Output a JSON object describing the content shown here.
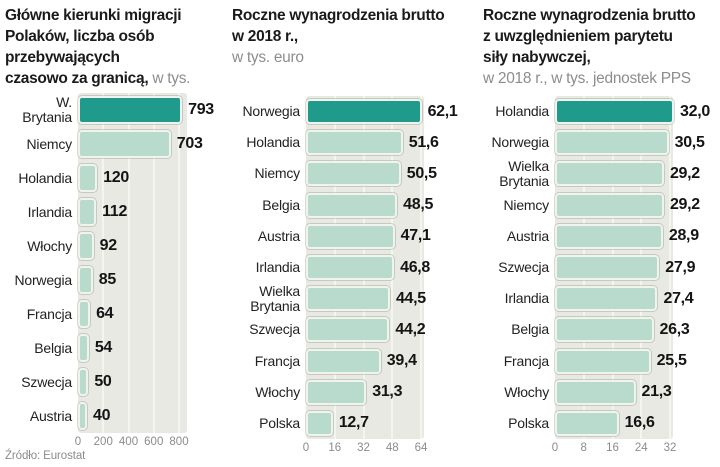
{
  "page": {
    "source": "Źródło: Eurostat"
  },
  "colors": {
    "bar": "#b8dbce",
    "bar_highlight": "#1f9a8b",
    "plot_background": "#e8e9e3",
    "gridline": "#f4f5ef",
    "title_text": "#1a1a1a",
    "muted_text": "#8d8d8d"
  },
  "chart_data": [
    {
      "type": "bar",
      "orientation": "horizontal",
      "title": "Główne kierunki migracji Polaków, liczba osób przebywających czasowo za granicą, w tys.",
      "categories": [
        "W. Brytania",
        "Niemcy",
        "Holandia",
        "Irlandia",
        "Włochy",
        "Norwegia",
        "Francja",
        "Belgia",
        "Szwecja",
        "Austria"
      ],
      "values": [
        793,
        703,
        120,
        112,
        92,
        85,
        64,
        54,
        50,
        40
      ],
      "xlim": [
        0,
        800
      ],
      "x_ticks": [
        0,
        200,
        400,
        600,
        800
      ]
    },
    {
      "type": "bar",
      "orientation": "horizontal",
      "title": "Roczne wynagrodzenia brutto w 2018 r., w tys. euro",
      "categories": [
        "Norwegia",
        "Holandia",
        "Niemcy",
        "Belgia",
        "Austria",
        "Irlandia",
        "Wielka Brytania",
        "Szwecja",
        "Francja",
        "Włochy",
        "Polska"
      ],
      "values": [
        62.1,
        51.6,
        50.5,
        48.5,
        47.1,
        46.8,
        44.5,
        44.2,
        39.4,
        31.3,
        12.7
      ],
      "xlim": [
        0,
        64
      ],
      "x_ticks": [
        0,
        16,
        32,
        48,
        64
      ]
    },
    {
      "type": "bar",
      "orientation": "horizontal",
      "title": "Roczne wynagrodzenia brutto z uwzględnieniem parytetu siły nabywczej, w 2018 r., w tys. jednostek PPS",
      "categories": [
        "Holandia",
        "Norwegia",
        "Wielka Brytania",
        "Niemcy",
        "Austria",
        "Szwecja",
        "Irlandia",
        "Belgia",
        "Francja",
        "Włochy",
        "Polska"
      ],
      "values": [
        32.0,
        30.5,
        29.2,
        29.2,
        28.9,
        27.9,
        27.4,
        26.3,
        25.5,
        21.3,
        16.6
      ],
      "xlim": [
        0,
        32
      ],
      "x_ticks": [
        0,
        8,
        16,
        24,
        32
      ]
    }
  ],
  "charts": [
    {
      "title_bold_lines": [
        "Główne kierunki migracji",
        "Polaków, liczba osób",
        "przebywających",
        "czasowo za granicą,"
      ],
      "title_light": "w tys.",
      "axis_ticks": [
        "0",
        "200",
        "400",
        "600",
        "800"
      ],
      "rows": [
        {
          "label": "W. Brytania",
          "value": 793,
          "value_label": "793",
          "highlight": true
        },
        {
          "label": "Niemcy",
          "value": 703,
          "value_label": "703",
          "highlight": false
        },
        {
          "label": "Holandia",
          "value": 120,
          "value_label": "120",
          "highlight": false
        },
        {
          "label": "Irlandia",
          "value": 112,
          "value_label": "112",
          "highlight": false
        },
        {
          "label": "Włochy",
          "value": 92,
          "value_label": "92",
          "highlight": false
        },
        {
          "label": "Norwegia",
          "value": 85,
          "value_label": "85",
          "highlight": false
        },
        {
          "label": "Francja",
          "value": 64,
          "value_label": "64",
          "highlight": false
        },
        {
          "label": "Belgia",
          "value": 54,
          "value_label": "54",
          "highlight": false
        },
        {
          "label": "Szwecja",
          "value": 50,
          "value_label": "50",
          "highlight": false
        },
        {
          "label": "Austria",
          "value": 40,
          "value_label": "40",
          "highlight": false
        }
      ]
    },
    {
      "title_bold_lines": [
        "Roczne wynagrodzenia brutto",
        "w 2018 r.,"
      ],
      "title_light": "w tys. euro",
      "axis_ticks": [
        "0",
        "16",
        "32",
        "48",
        "64"
      ],
      "rows": [
        {
          "label": "Norwegia",
          "value": 62.1,
          "value_label": "62,1",
          "highlight": true
        },
        {
          "label": "Holandia",
          "value": 51.6,
          "value_label": "51,6",
          "highlight": false
        },
        {
          "label": "Niemcy",
          "value": 50.5,
          "value_label": "50,5",
          "highlight": false
        },
        {
          "label": "Belgia",
          "value": 48.5,
          "value_label": "48,5",
          "highlight": false
        },
        {
          "label": "Austria",
          "value": 47.1,
          "value_label": "47,1",
          "highlight": false
        },
        {
          "label": "Irlandia",
          "value": 46.8,
          "value_label": "46,8",
          "highlight": false
        },
        {
          "label": "Wielka Brytania",
          "value": 44.5,
          "value_label": "44,5",
          "highlight": false
        },
        {
          "label": "Szwecja",
          "value": 44.2,
          "value_label": "44,2",
          "highlight": false
        },
        {
          "label": "Francja",
          "value": 39.4,
          "value_label": "39,4",
          "highlight": false
        },
        {
          "label": "Włochy",
          "value": 31.3,
          "value_label": "31,3",
          "highlight": false
        },
        {
          "label": "Polska",
          "value": 12.7,
          "value_label": "12,7",
          "highlight": false
        }
      ]
    },
    {
      "title_bold_lines": [
        "Roczne wynagrodzenia brutto",
        "z uwzględnieniem parytetu",
        "siły nabywczej,"
      ],
      "title_light": "w 2018 r., w tys. jednostek PPS",
      "axis_ticks": [
        "0",
        "8",
        "16",
        "24",
        "32"
      ],
      "rows": [
        {
          "label": "Holandia",
          "value": 32.0,
          "value_label": "32,0",
          "highlight": true
        },
        {
          "label": "Norwegia",
          "value": 30.5,
          "value_label": "30,5",
          "highlight": false
        },
        {
          "label": "Wielka Brytania",
          "value": 29.2,
          "value_label": "29,2",
          "highlight": false
        },
        {
          "label": "Niemcy",
          "value": 29.2,
          "value_label": "29,2",
          "highlight": false
        },
        {
          "label": "Austria",
          "value": 28.9,
          "value_label": "28,9",
          "highlight": false
        },
        {
          "label": "Szwecja",
          "value": 27.9,
          "value_label": "27,9",
          "highlight": false
        },
        {
          "label": "Irlandia",
          "value": 27.4,
          "value_label": "27,4",
          "highlight": false
        },
        {
          "label": "Belgia",
          "value": 26.3,
          "value_label": "26,3",
          "highlight": false
        },
        {
          "label": "Francja",
          "value": 25.5,
          "value_label": "25,5",
          "highlight": false
        },
        {
          "label": "Włochy",
          "value": 21.3,
          "value_label": "21,3",
          "highlight": false
        },
        {
          "label": "Polska",
          "value": 16.6,
          "value_label": "16,6",
          "highlight": false
        }
      ]
    }
  ]
}
